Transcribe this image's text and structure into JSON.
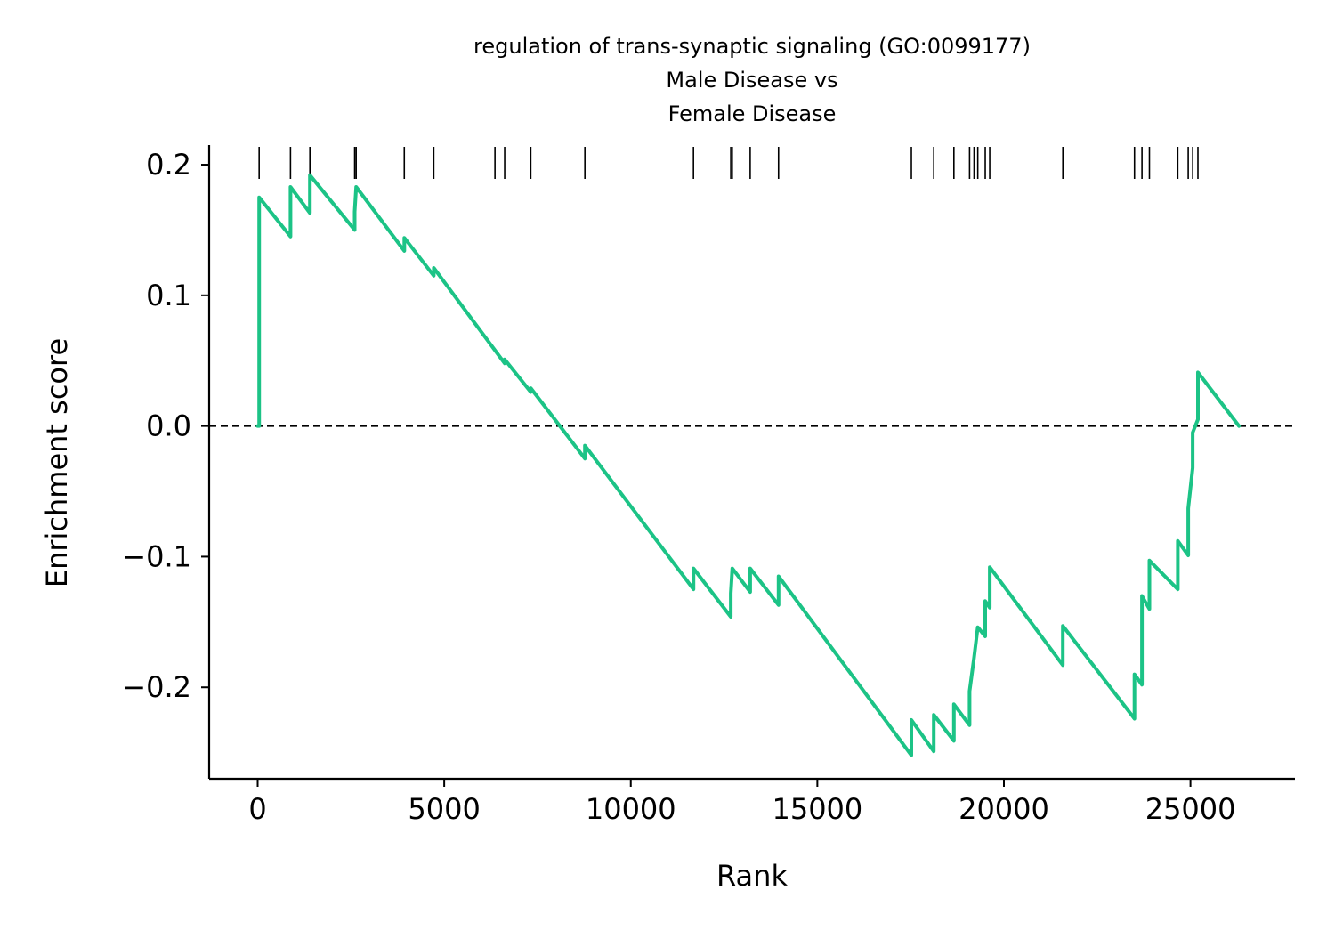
{
  "title": {
    "line1": "regulation of trans-synaptic signaling (GO:0099177)",
    "line2": "Male Disease vs",
    "line3": "Female Disease"
  },
  "colors": {
    "line": "#1cc386",
    "hits": "#000000",
    "zero_line": "#000000",
    "axis": "#000000"
  },
  "chart_data": {
    "type": "line",
    "title": "regulation of trans-synaptic signaling (GO:0099177)\nMale Disease vs\nFemale Disease",
    "xlabel": "Rank",
    "ylabel": "Enrichment score",
    "xlim": [
      -1300,
      27800
    ],
    "ylim": [
      -0.27,
      0.215
    ],
    "xticks": [
      0,
      5000,
      10000,
      15000,
      20000,
      25000
    ],
    "xtick_labels": [
      "0",
      "5000",
      "10000",
      "15000",
      "20000",
      "25000"
    ],
    "yticks": [
      0.2,
      0.1,
      0.0,
      -0.1,
      -0.2
    ],
    "ytick_labels": [
      "0.2",
      "0.1",
      "0.0",
      "−0.1",
      "−0.2"
    ],
    "zero_line": {
      "y": 0,
      "style": "dashed"
    },
    "grid": false,
    "hit_ranks": [
      40,
      880,
      1400,
      2600,
      2640,
      3930,
      4720,
      6360,
      6620,
      7320,
      8770,
      11680,
      12680,
      12720,
      13200,
      13960,
      17520,
      18120,
      18660,
      19080,
      19200,
      19300,
      19500,
      19620,
      21580,
      23500,
      23700,
      23900,
      24660,
      24940,
      25060,
      25200
    ],
    "series": [
      {
        "x": [
          0,
          40,
          40,
          880,
          880,
          1400,
          1400,
          2600,
          2600,
          2640,
          2640,
          3930,
          3930,
          4720,
          4720,
          6360,
          6360,
          6620,
          6620,
          7320,
          7320,
          8770,
          8770,
          11680,
          11680,
          12680,
          12680,
          12720,
          12720,
          13200,
          13200,
          13960,
          13960,
          17520,
          17520,
          18120,
          18120,
          18660,
          18660,
          19080,
          19080,
          19200,
          19200,
          19300,
          19300,
          19500,
          19500,
          19620,
          19620,
          21580,
          21580,
          23500,
          23500,
          23700,
          23700,
          23900,
          23900,
          24660,
          24660,
          24940,
          24940,
          25060,
          25060,
          25200,
          25200,
          26300
        ],
        "values": [
          0,
          0,
          0.175,
          0.145,
          0.183,
          0.163,
          0.192,
          0.15,
          0.164,
          0.183,
          0.183,
          0.134,
          0.144,
          0.115,
          0.121,
          0.058,
          0.058,
          0.048,
          0.051,
          0.026,
          0.029,
          -0.025,
          -0.015,
          -0.125,
          -0.109,
          -0.146,
          -0.128,
          -0.109,
          -0.109,
          -0.127,
          -0.109,
          -0.137,
          -0.115,
          -0.252,
          -0.225,
          -0.249,
          -0.221,
          -0.241,
          -0.213,
          -0.229,
          -0.203,
          -0.177,
          -0.177,
          -0.154,
          -0.154,
          -0.161,
          -0.134,
          -0.139,
          -0.108,
          -0.183,
          -0.153,
          -0.224,
          -0.19,
          -0.198,
          -0.13,
          -0.14,
          -0.103,
          -0.125,
          -0.088,
          -0.099,
          -0.063,
          -0.032,
          -0.005,
          0.005,
          0.041,
          0.0
        ]
      }
    ]
  }
}
